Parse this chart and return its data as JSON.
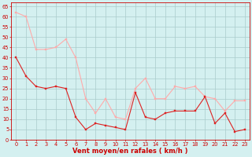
{
  "x": [
    0,
    1,
    2,
    3,
    4,
    5,
    6,
    7,
    8,
    9,
    10,
    11,
    12,
    13,
    14,
    15,
    16,
    17,
    18,
    19,
    20,
    21,
    22,
    23
  ],
  "wind_avg": [
    40,
    31,
    26,
    25,
    26,
    25,
    11,
    5,
    8,
    7,
    6,
    5,
    23,
    11,
    10,
    13,
    14,
    14,
    14,
    21,
    8,
    13,
    4,
    5
  ],
  "wind_gust": [
    62,
    60,
    44,
    44,
    45,
    49,
    40,
    20,
    13,
    20,
    11,
    10,
    25,
    30,
    20,
    20,
    26,
    25,
    26,
    21,
    20,
    14,
    19,
    19
  ],
  "avg_color": "#dd2222",
  "gust_color": "#ffaaaa",
  "bg_color": "#d4f0f0",
  "grid_color": "#aacccc",
  "xlabel": "Vent moyen/en rafales ( km/h )",
  "xlabel_color": "#cc0000",
  "tick_color": "#cc0000",
  "xlabel_fontsize": 6.0,
  "tick_fontsize": 4.8,
  "yticks": [
    0,
    5,
    10,
    15,
    20,
    25,
    30,
    35,
    40,
    45,
    50,
    55,
    60,
    65
  ],
  "xticks": [
    0,
    1,
    2,
    3,
    4,
    5,
    6,
    7,
    8,
    9,
    10,
    11,
    12,
    13,
    14,
    15,
    16,
    17,
    18,
    19,
    20,
    21,
    22,
    23
  ],
  "ylim": [
    0,
    67
  ],
  "xlim": [
    -0.5,
    23.5
  ]
}
